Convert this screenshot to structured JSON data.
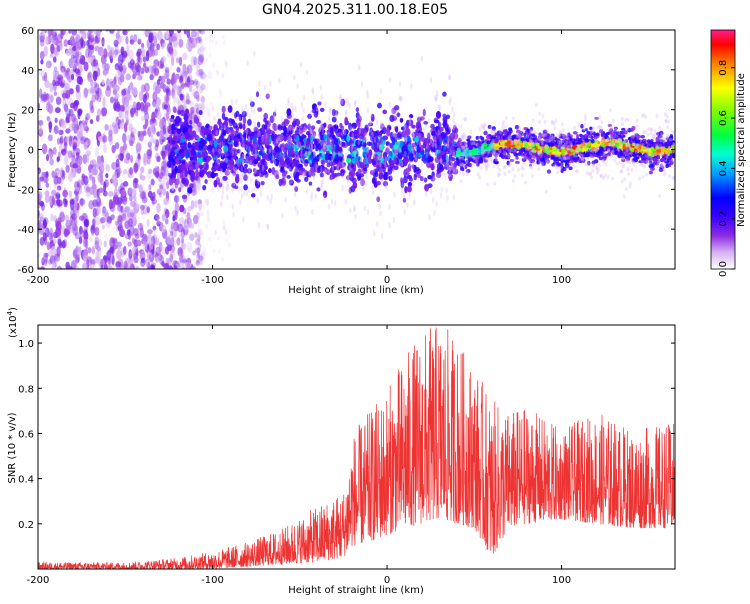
{
  "title": "GN04.2025.311.00.18.E05",
  "chart_data": [
    {
      "type": "heatmap",
      "title": "GN04.2025.311.00.18.E05",
      "xlabel": "Height of straight line (km)",
      "ylabel": "Frequency (Hz)",
      "xlim": [
        -200,
        165
      ],
      "ylim": [
        -60,
        60
      ],
      "xticks": [
        -200,
        -100,
        0,
        100
      ],
      "yticks": [
        -60,
        -40,
        -20,
        0,
        20,
        40,
        60
      ],
      "grid": false,
      "colorbar": {
        "label": "Normalized spectral amplitude",
        "range": [
          0.0,
          0.95
        ],
        "ticks": [
          0.0,
          0.2,
          0.4,
          0.6,
          0.8
        ],
        "colormap": [
          "#ffffff",
          "#c8a0f0",
          "#8a2be2",
          "#3a00ff",
          "#0000ff",
          "#00c8ff",
          "#00ff80",
          "#66ff00",
          "#ffff00",
          "#ff8000",
          "#ff0000",
          "#ff0080"
        ]
      },
      "regions": [
        {
          "x": [
            -200,
            -110
          ],
          "freq_center": 0,
          "freq_spread": 60,
          "amplitude": 0.05,
          "description_color": "noise"
        },
        {
          "x": [
            -125,
            40
          ],
          "freq_center": 0,
          "freq_spread": 20,
          "amplitude": 0.15
        },
        {
          "x": [
            40,
            165
          ],
          "freq_center": 0,
          "freq_spread": 8,
          "amplitude": 0.7
        }
      ]
    },
    {
      "type": "line",
      "xlabel": "Height of straight line (km)",
      "ylabel": "SNR (10 * v/v)",
      "yscale_label": "(x10",
      "yscale_exp": "4",
      "yscale_close": ")",
      "xlim": [
        -200,
        165
      ],
      "ylim": [
        0,
        1.08
      ],
      "xticks": [
        -200,
        -100,
        0,
        100
      ],
      "yticks": [
        0.2,
        0.4,
        0.6,
        0.8,
        1.0
      ],
      "grid": false,
      "series": [
        {
          "name": "SNR",
          "color": "#ee3333",
          "envelope": {
            "x": [
              -200,
              -150,
              -120,
              -100,
              -80,
              -60,
              -40,
              -25,
              -20,
              -10,
              0,
              10,
              20,
              30,
              40,
              50,
              60,
              70,
              80,
              100,
              120,
              140,
              165
            ],
            "min": [
              0.0,
              0.0,
              0.0,
              0.0,
              0.01,
              0.02,
              0.03,
              0.05,
              0.1,
              0.12,
              0.15,
              0.18,
              0.2,
              0.22,
              0.2,
              0.18,
              0.05,
              0.18,
              0.2,
              0.22,
              0.2,
              0.18,
              0.18
            ],
            "max": [
              0.03,
              0.03,
              0.05,
              0.08,
              0.12,
              0.18,
              0.28,
              0.35,
              0.6,
              0.7,
              0.8,
              0.95,
              1.05,
              1.1,
              1.02,
              0.9,
              0.75,
              0.7,
              0.72,
              0.62,
              0.7,
              0.62,
              0.65
            ]
          }
        }
      ]
    }
  ]
}
